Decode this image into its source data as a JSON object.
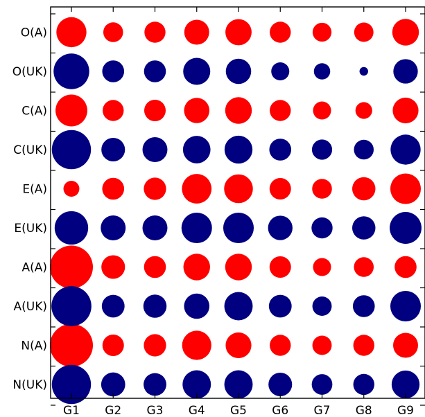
{
  "chart_data": {
    "type": "scatter",
    "subtype": "bubble-matrix",
    "title": "",
    "xlabel": "",
    "ylabel": "",
    "x_categories": [
      "G1",
      "G2",
      "G3",
      "G4",
      "G5",
      "G6",
      "G7",
      "G8",
      "G9"
    ],
    "y_categories": [
      "O(A)",
      "O(UK)",
      "C(A)",
      "C(UK)",
      "E(A)",
      "E(UK)",
      "A(A)",
      "A(UK)",
      "N(A)",
      "N(UK)"
    ],
    "grid": false,
    "legend": "none",
    "series": [
      {
        "color": "#ff0000",
        "rows": [
          {
            "y": "O(A)",
            "sizes": [
              0.7,
              0.46,
              0.49,
              0.58,
              0.61,
              0.49,
              0.44,
              0.45,
              0.62
            ]
          },
          {
            "y": "C(A)",
            "sizes": [
              0.74,
              0.49,
              0.5,
              0.59,
              0.62,
              0.49,
              0.42,
              0.39,
              0.6
            ]
          },
          {
            "y": "E(A)",
            "sizes": [
              0.37,
              0.51,
              0.52,
              0.69,
              0.67,
              0.5,
              0.46,
              0.54,
              0.71
            ]
          },
          {
            "y": "A(A)",
            "sizes": [
              1.0,
              0.55,
              0.51,
              0.62,
              0.62,
              0.5,
              0.42,
              0.46,
              0.51
            ]
          },
          {
            "y": "N(A)",
            "sizes": [
              1.0,
              0.5,
              0.52,
              0.68,
              0.6,
              0.49,
              0.45,
              0.49,
              0.58
            ]
          }
        ]
      },
      {
        "color": "#000080",
        "rows": [
          {
            "y": "O(UK)",
            "sizes": [
              0.83,
              0.51,
              0.51,
              0.63,
              0.59,
              0.42,
              0.38,
              0.2,
              0.57
            ]
          },
          {
            "y": "C(UK)",
            "sizes": [
              0.91,
              0.55,
              0.58,
              0.64,
              0.65,
              0.51,
              0.47,
              0.46,
              0.7
            ]
          },
          {
            "y": "E(UK)",
            "sizes": [
              0.78,
              0.58,
              0.58,
              0.71,
              0.71,
              0.57,
              0.49,
              0.54,
              0.74
            ]
          },
          {
            "y": "A(UK)",
            "sizes": [
              0.93,
              0.53,
              0.54,
              0.59,
              0.66,
              0.53,
              0.45,
              0.51,
              0.71
            ]
          },
          {
            "y": "N(UK)",
            "sizes": [
              0.91,
              0.56,
              0.53,
              0.66,
              0.66,
              0.55,
              0.48,
              0.49,
              0.65
            ]
          }
        ]
      }
    ]
  }
}
